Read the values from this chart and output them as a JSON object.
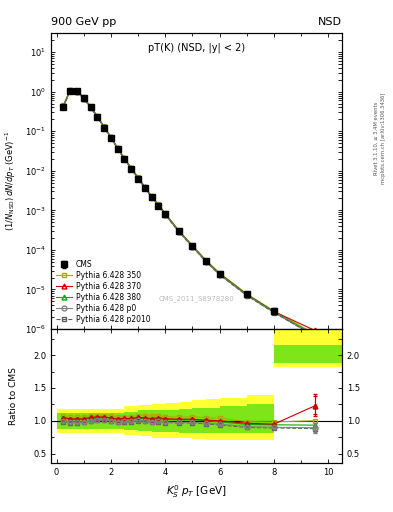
{
  "title_left": "900 GeV pp",
  "title_right": "NSD",
  "inner_title": "pT(K) (NSD, |y| < 2)",
  "watermark": "CMS_2011_S8978280",
  "right_label_top": "Rivet 3.1.10, ≥ 3.4M events",
  "right_label_bottom": "mcplots.cern.ch [arXiv:1306.3436]",
  "ylabel_main": "(1/N$_{NSD}$) dN/dp$_T$ (GeV)$^{-1}$",
  "ylabel_ratio": "Ratio to CMS",
  "xlabel": "K$^0_S$ p$_T$ [GeV]",
  "ylim_main": [
    1e-06,
    30
  ],
  "ylim_ratio": [
    0.35,
    2.4
  ],
  "xlim": [
    -0.2,
    10.5
  ],
  "cms_data": {
    "x": [
      0.25,
      0.5,
      0.75,
      1.0,
      1.25,
      1.5,
      1.75,
      2.0,
      2.25,
      2.5,
      2.75,
      3.0,
      3.25,
      3.5,
      3.75,
      4.0,
      4.5,
      5.0,
      5.5,
      6.0,
      7.0,
      8.0,
      9.5
    ],
    "y": [
      0.42,
      1.05,
      1.02,
      0.68,
      0.4,
      0.225,
      0.122,
      0.068,
      0.036,
      0.0198,
      0.0113,
      0.0063,
      0.0037,
      0.00215,
      0.00131,
      0.00079,
      0.000295,
      0.000123,
      5.25e-05,
      2.5e-05,
      7.8e-06,
      2.9e-06,
      7.5e-07
    ],
    "yerr": [
      0.025,
      0.045,
      0.038,
      0.028,
      0.018,
      0.009,
      0.006,
      0.0035,
      0.0018,
      0.001,
      0.00065,
      0.00037,
      0.00027,
      0.00014,
      9e-05,
      5.5e-05,
      2.3e-05,
      1e-05,
      4.5e-06,
      2.7e-06,
      9e-07,
      4.5e-07,
      1.8e-07
    ],
    "color": "#000000",
    "marker": "s",
    "label": "CMS"
  },
  "pythia_350": {
    "x": [
      0.25,
      0.5,
      0.75,
      1.0,
      1.25,
      1.5,
      1.75,
      2.0,
      2.25,
      2.5,
      2.75,
      3.0,
      3.25,
      3.5,
      3.75,
      4.0,
      4.5,
      5.0,
      5.5,
      6.0,
      7.0,
      8.0,
      9.5
    ],
    "y": [
      0.45,
      1.1,
      1.07,
      0.72,
      0.43,
      0.243,
      0.132,
      0.073,
      0.038,
      0.021,
      0.012,
      0.0068,
      0.004,
      0.0023,
      0.00141,
      0.00084,
      0.000312,
      0.00013,
      5.5e-05,
      2.6e-05,
      7.7e-06,
      2.85e-06,
      7.5e-07
    ],
    "color": "#aaaa00",
    "marker": "s",
    "fillstyle": "none",
    "linestyle": "-",
    "label": "Pythia 6.428 350",
    "ratio": [
      1.07,
      1.05,
      1.05,
      1.06,
      1.075,
      1.08,
      1.08,
      1.07,
      1.06,
      1.06,
      1.06,
      1.08,
      1.08,
      1.07,
      1.076,
      1.063,
      1.056,
      1.057,
      1.048,
      1.04,
      0.987,
      0.983,
      1.0
    ],
    "ratio_xerr": [
      0.125,
      0.125,
      0.125,
      0.125,
      0.125,
      0.125,
      0.125,
      0.125,
      0.125,
      0.125,
      0.125,
      0.125,
      0.125,
      0.125,
      0.125,
      0.125,
      0.25,
      0.25,
      0.25,
      0.5,
      0.5,
      0.5,
      0.75
    ]
  },
  "pythia_370": {
    "x": [
      0.25,
      0.5,
      0.75,
      1.0,
      1.25,
      1.5,
      1.75,
      2.0,
      2.25,
      2.5,
      2.75,
      3.0,
      3.25,
      3.5,
      3.75,
      4.0,
      4.5,
      5.0,
      5.5,
      6.0,
      7.0,
      8.0,
      9.5
    ],
    "y": [
      0.44,
      1.08,
      1.05,
      0.7,
      0.42,
      0.238,
      0.129,
      0.071,
      0.037,
      0.0205,
      0.0117,
      0.00663,
      0.00387,
      0.00222,
      0.00137,
      0.000815,
      0.000302,
      0.000126,
      5.3e-05,
      2.5e-05,
      7.5e-06,
      2.75e-06,
      9.2e-07
    ],
    "color": "#cc0000",
    "marker": "^",
    "fillstyle": "none",
    "linestyle": "-",
    "label": "Pythia 6.428 370",
    "ratio": [
      1.048,
      1.029,
      1.029,
      1.029,
      1.05,
      1.058,
      1.057,
      1.044,
      1.028,
      1.035,
      1.035,
      1.052,
      1.046,
      1.033,
      1.046,
      1.032,
      1.024,
      1.024,
      1.01,
      1.0,
      0.962,
      0.948,
      1.227
    ],
    "ratio_yerr": [
      0.0,
      0.0,
      0.0,
      0.0,
      0.0,
      0.0,
      0.0,
      0.0,
      0.0,
      0.0,
      0.0,
      0.0,
      0.0,
      0.0,
      0.0,
      0.0,
      0.0,
      0.0,
      0.0,
      0.0,
      0.0,
      0.0,
      0.15
    ]
  },
  "pythia_380": {
    "x": [
      0.25,
      0.5,
      0.75,
      1.0,
      1.25,
      1.5,
      1.75,
      2.0,
      2.25,
      2.5,
      2.75,
      3.0,
      3.25,
      3.5,
      3.75,
      4.0,
      4.5,
      5.0,
      5.5,
      6.0,
      7.0,
      8.0,
      9.5
    ],
    "y": [
      0.435,
      1.07,
      1.04,
      0.695,
      0.415,
      0.235,
      0.128,
      0.0705,
      0.0367,
      0.0203,
      0.01155,
      0.00655,
      0.00382,
      0.0022,
      0.00135,
      0.000805,
      0.000299,
      0.0001248,
      5.24e-05,
      2.46e-05,
      7.37e-06,
      2.72e-06,
      7e-07
    ],
    "color": "#00aa00",
    "marker": "^",
    "fillstyle": "none",
    "linestyle": "-",
    "label": "Pythia 6.428 380",
    "ratio": [
      1.036,
      1.019,
      1.02,
      1.022,
      1.038,
      1.044,
      1.049,
      1.037,
      1.019,
      1.025,
      1.022,
      1.04,
      1.032,
      1.023,
      1.031,
      1.019,
      1.014,
      1.015,
      0.998,
      0.984,
      0.945,
      0.938,
      0.933
    ]
  },
  "pythia_p0": {
    "x": [
      0.25,
      0.5,
      0.75,
      1.0,
      1.25,
      1.5,
      1.75,
      2.0,
      2.25,
      2.5,
      2.75,
      3.0,
      3.25,
      3.5,
      3.75,
      4.0,
      4.5,
      5.0,
      5.5,
      6.0,
      7.0,
      8.0,
      9.5
    ],
    "y": [
      0.42,
      1.03,
      1.0,
      0.67,
      0.4,
      0.228,
      0.124,
      0.068,
      0.0355,
      0.0196,
      0.0112,
      0.00634,
      0.0037,
      0.00212,
      0.0013,
      0.000775,
      0.000288,
      0.00012,
      5.05e-05,
      2.37e-05,
      7.1e-06,
      2.61e-06,
      6.7e-07
    ],
    "color": "#808080",
    "marker": "o",
    "fillstyle": "none",
    "linestyle": "-",
    "label": "Pythia 6.428 p0",
    "ratio": [
      1.0,
      0.981,
      0.98,
      0.985,
      1.0,
      1.013,
      1.016,
      1.0,
      0.986,
      0.99,
      0.991,
      1.006,
      1.0,
      0.986,
      0.992,
      0.981,
      0.976,
      0.976,
      0.962,
      0.948,
      0.91,
      0.9,
      0.893
    ],
    "ratio_yerr": [
      0.0,
      0.0,
      0.0,
      0.0,
      0.0,
      0.0,
      0.0,
      0.0,
      0.0,
      0.0,
      0.0,
      0.0,
      0.0,
      0.0,
      0.0,
      0.0,
      0.0,
      0.0,
      0.0,
      0.0,
      0.0,
      0.0,
      0.08
    ]
  },
  "pythia_p2010": {
    "x": [
      0.25,
      0.5,
      0.75,
      1.0,
      1.25,
      1.5,
      1.75,
      2.0,
      2.25,
      2.5,
      2.75,
      3.0,
      3.25,
      3.5,
      3.75,
      4.0,
      4.5,
      5.0,
      5.5,
      6.0,
      7.0,
      8.0,
      9.5
    ],
    "y": [
      0.415,
      1.02,
      0.99,
      0.665,
      0.397,
      0.226,
      0.123,
      0.0675,
      0.0352,
      0.01945,
      0.01108,
      0.00628,
      0.00366,
      0.0021,
      0.00129,
      0.000768,
      0.000285,
      0.000119,
      5e-05,
      2.34e-05,
      7e-06,
      2.58e-06,
      6.6e-07
    ],
    "color": "#606060",
    "marker": "s",
    "fillstyle": "none",
    "linestyle": "--",
    "label": "Pythia 6.428 p2010",
    "ratio": [
      0.988,
      0.971,
      0.97,
      0.978,
      0.993,
      1.004,
      1.008,
      0.993,
      0.978,
      0.981,
      0.981,
      0.997,
      0.989,
      0.977,
      0.984,
      0.972,
      0.966,
      0.967,
      0.952,
      0.936,
      0.897,
      0.89,
      0.88
    ],
    "ratio_yerr": [
      0.0,
      0.0,
      0.0,
      0.0,
      0.0,
      0.0,
      0.0,
      0.0,
      0.0,
      0.0,
      0.0,
      0.0,
      0.0,
      0.0,
      0.0,
      0.0,
      0.0,
      0.0,
      0.0,
      0.0,
      0.0,
      0.0,
      0.0
    ]
  },
  "band_yellow": {
    "x_edges": [
      0.0,
      0.5,
      1.0,
      1.5,
      2.0,
      2.5,
      3.0,
      3.5,
      4.0,
      4.5,
      5.0,
      5.5,
      6.0,
      7.0,
      8.0,
      10.5
    ],
    "y_low": [
      0.82,
      0.82,
      0.82,
      0.82,
      0.82,
      0.78,
      0.76,
      0.74,
      0.73,
      0.73,
      0.72,
      0.71,
      0.71,
      0.7,
      1.82,
      1.82
    ],
    "y_high": [
      1.18,
      1.18,
      1.18,
      1.18,
      1.18,
      1.22,
      1.24,
      1.26,
      1.27,
      1.29,
      1.31,
      1.33,
      1.35,
      1.4,
      2.4,
      2.4
    ],
    "color": "#ffff00",
    "alpha": 0.8
  },
  "band_green": {
    "x_edges": [
      0.0,
      0.5,
      1.0,
      1.5,
      2.0,
      2.5,
      3.0,
      3.5,
      4.0,
      4.5,
      5.0,
      5.5,
      6.0,
      7.0,
      8.0,
      10.5
    ],
    "y_low": [
      0.88,
      0.88,
      0.88,
      0.88,
      0.88,
      0.86,
      0.84,
      0.83,
      0.83,
      0.82,
      0.82,
      0.82,
      0.82,
      0.82,
      1.88,
      1.88
    ],
    "y_high": [
      1.12,
      1.12,
      1.12,
      1.12,
      1.12,
      1.14,
      1.16,
      1.17,
      1.17,
      1.18,
      1.19,
      1.2,
      1.22,
      1.25,
      2.15,
      2.15
    ],
    "color": "#00cc00",
    "alpha": 0.5
  }
}
